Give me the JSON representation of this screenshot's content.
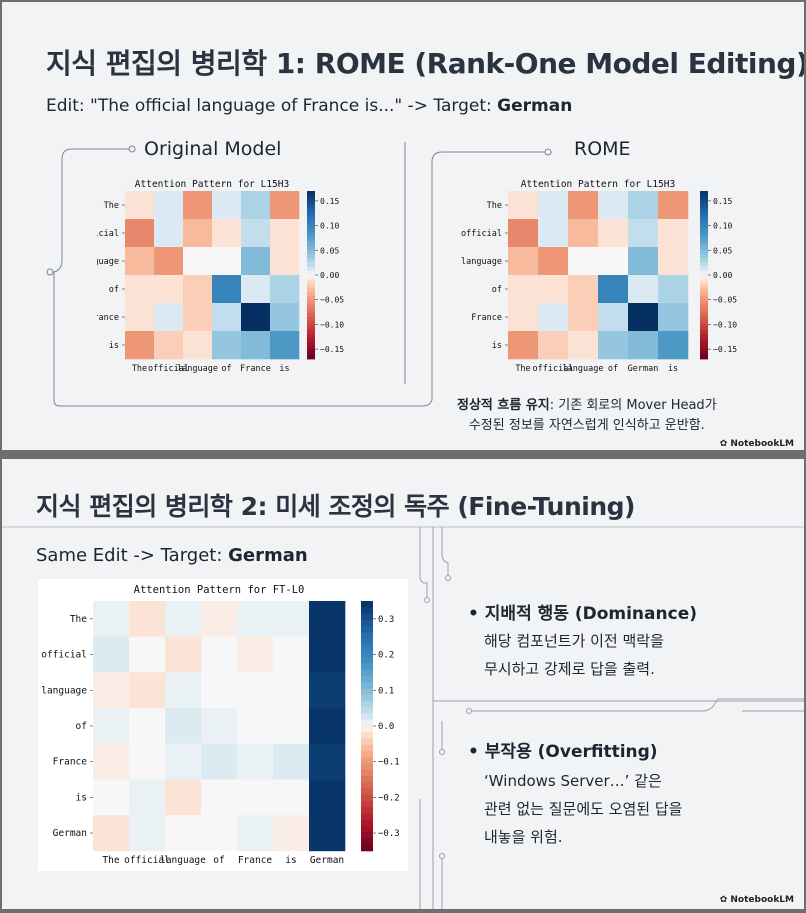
{
  "slide1": {
    "title": "지식 편집의 병리학 1: ROME (Rank-One Model Editing)",
    "edit_prefix": "Edit: \"The official language of France is...\" -> Target: ",
    "edit_target": "German",
    "left_label": "Original Model",
    "right_label": "ROME",
    "caption_bold": "정상적 흐름 유지",
    "caption_rest": ": 기존 회로의 Mover Head가",
    "caption_line2": "수정된 정보를 자연스럽게 인식하고 운반함.",
    "brand": "NotebookLM"
  },
  "slide2": {
    "title": "지식 편집의 병리학 2: 미세 조정의 독주 (Fine-Tuning)",
    "edit_prefix": "Same Edit -> Target: ",
    "edit_target": "German",
    "bullet1_head": "지배적 행동 (Dominance)",
    "bullet1_lines": [
      "해당 컴포넌트가 이전 맥락을",
      "무시하고 강제로 답을 출력."
    ],
    "bullet2_head": "부작용 (Overfitting)",
    "bullet2_lines": [
      "‘Windows Server…’ 같은",
      "관련 없는 질문에도 오염된 답을",
      "내놓을 위험."
    ],
    "brand": "NotebookLM"
  },
  "chart_data": [
    {
      "type": "heatmap",
      "title": "Attention Pattern for L15H3",
      "x_labels": [
        "The",
        "official",
        "language",
        "of",
        "France",
        "is"
      ],
      "y_labels": [
        "The",
        "official",
        "language",
        "of",
        "France",
        "is"
      ],
      "colorbar_ticks": [
        "0.15",
        "0.10",
        "0.05",
        "0.00",
        "−0.05",
        "−0.10",
        "−0.15"
      ],
      "vlim": [
        -0.17,
        0.17
      ],
      "values": [
        [
          -0.01,
          0.01,
          -0.05,
          0.01,
          0.03,
          -0.05
        ],
        [
          -0.06,
          0.01,
          -0.03,
          -0.01,
          0.02,
          -0.01
        ],
        [
          -0.03,
          -0.05,
          0.0,
          0.0,
          0.05,
          -0.01
        ],
        [
          -0.01,
          -0.01,
          -0.02,
          0.1,
          0.01,
          0.03
        ],
        [
          -0.01,
          0.01,
          -0.02,
          0.02,
          0.17,
          0.04
        ],
        [
          -0.05,
          -0.02,
          -0.01,
          0.04,
          0.05,
          0.08
        ]
      ]
    },
    {
      "type": "heatmap",
      "title": "Attention Pattern for L15H3",
      "x_labels": [
        "The",
        "official",
        "language",
        "of",
        "German",
        "is"
      ],
      "y_labels": [
        "The",
        "official",
        "language",
        "of",
        "France",
        "is"
      ],
      "colorbar_ticks": [
        "0.15",
        "0.10",
        "0.05",
        "0.00",
        "−0.05",
        "−0.10",
        "−0.15"
      ],
      "vlim": [
        -0.17,
        0.17
      ],
      "values": [
        [
          -0.01,
          0.01,
          -0.05,
          0.01,
          0.03,
          -0.05
        ],
        [
          -0.06,
          0.01,
          -0.03,
          -0.01,
          0.02,
          -0.01
        ],
        [
          -0.03,
          -0.05,
          0.0,
          0.0,
          0.05,
          -0.01
        ],
        [
          -0.01,
          -0.01,
          -0.02,
          0.1,
          0.01,
          0.03
        ],
        [
          -0.01,
          0.01,
          -0.02,
          0.02,
          0.17,
          0.04
        ],
        [
          -0.05,
          -0.02,
          -0.01,
          0.04,
          0.05,
          0.08
        ]
      ]
    },
    {
      "type": "heatmap",
      "title": "Attention Pattern for FT-L0",
      "x_labels": [
        "The",
        "official",
        "language",
        "of",
        "France",
        "is",
        "German"
      ],
      "y_labels": [
        "The",
        "official",
        "language",
        "of",
        "France",
        "is",
        "German"
      ],
      "colorbar_ticks": [
        "0.3",
        "0.2",
        "0.1",
        "0.0",
        "−0.1",
        "−0.2",
        "−0.3"
      ],
      "vlim": [
        -0.35,
        0.35
      ],
      "values": [
        [
          0.01,
          -0.02,
          0.01,
          -0.01,
          0.01,
          0.01,
          0.34
        ],
        [
          0.02,
          0.0,
          -0.02,
          0.0,
          -0.01,
          0.0,
          0.34
        ],
        [
          -0.01,
          -0.02,
          0.01,
          0.0,
          0.0,
          0.0,
          0.33
        ],
        [
          0.01,
          0.0,
          0.02,
          0.01,
          0.0,
          0.0,
          0.34
        ],
        [
          -0.01,
          0.0,
          0.01,
          0.02,
          0.01,
          0.02,
          0.33
        ],
        [
          0.0,
          0.01,
          -0.02,
          0.0,
          0.0,
          0.0,
          0.34
        ],
        [
          -0.02,
          0.01,
          0.0,
          0.0,
          0.01,
          -0.01,
          0.34
        ]
      ]
    }
  ]
}
